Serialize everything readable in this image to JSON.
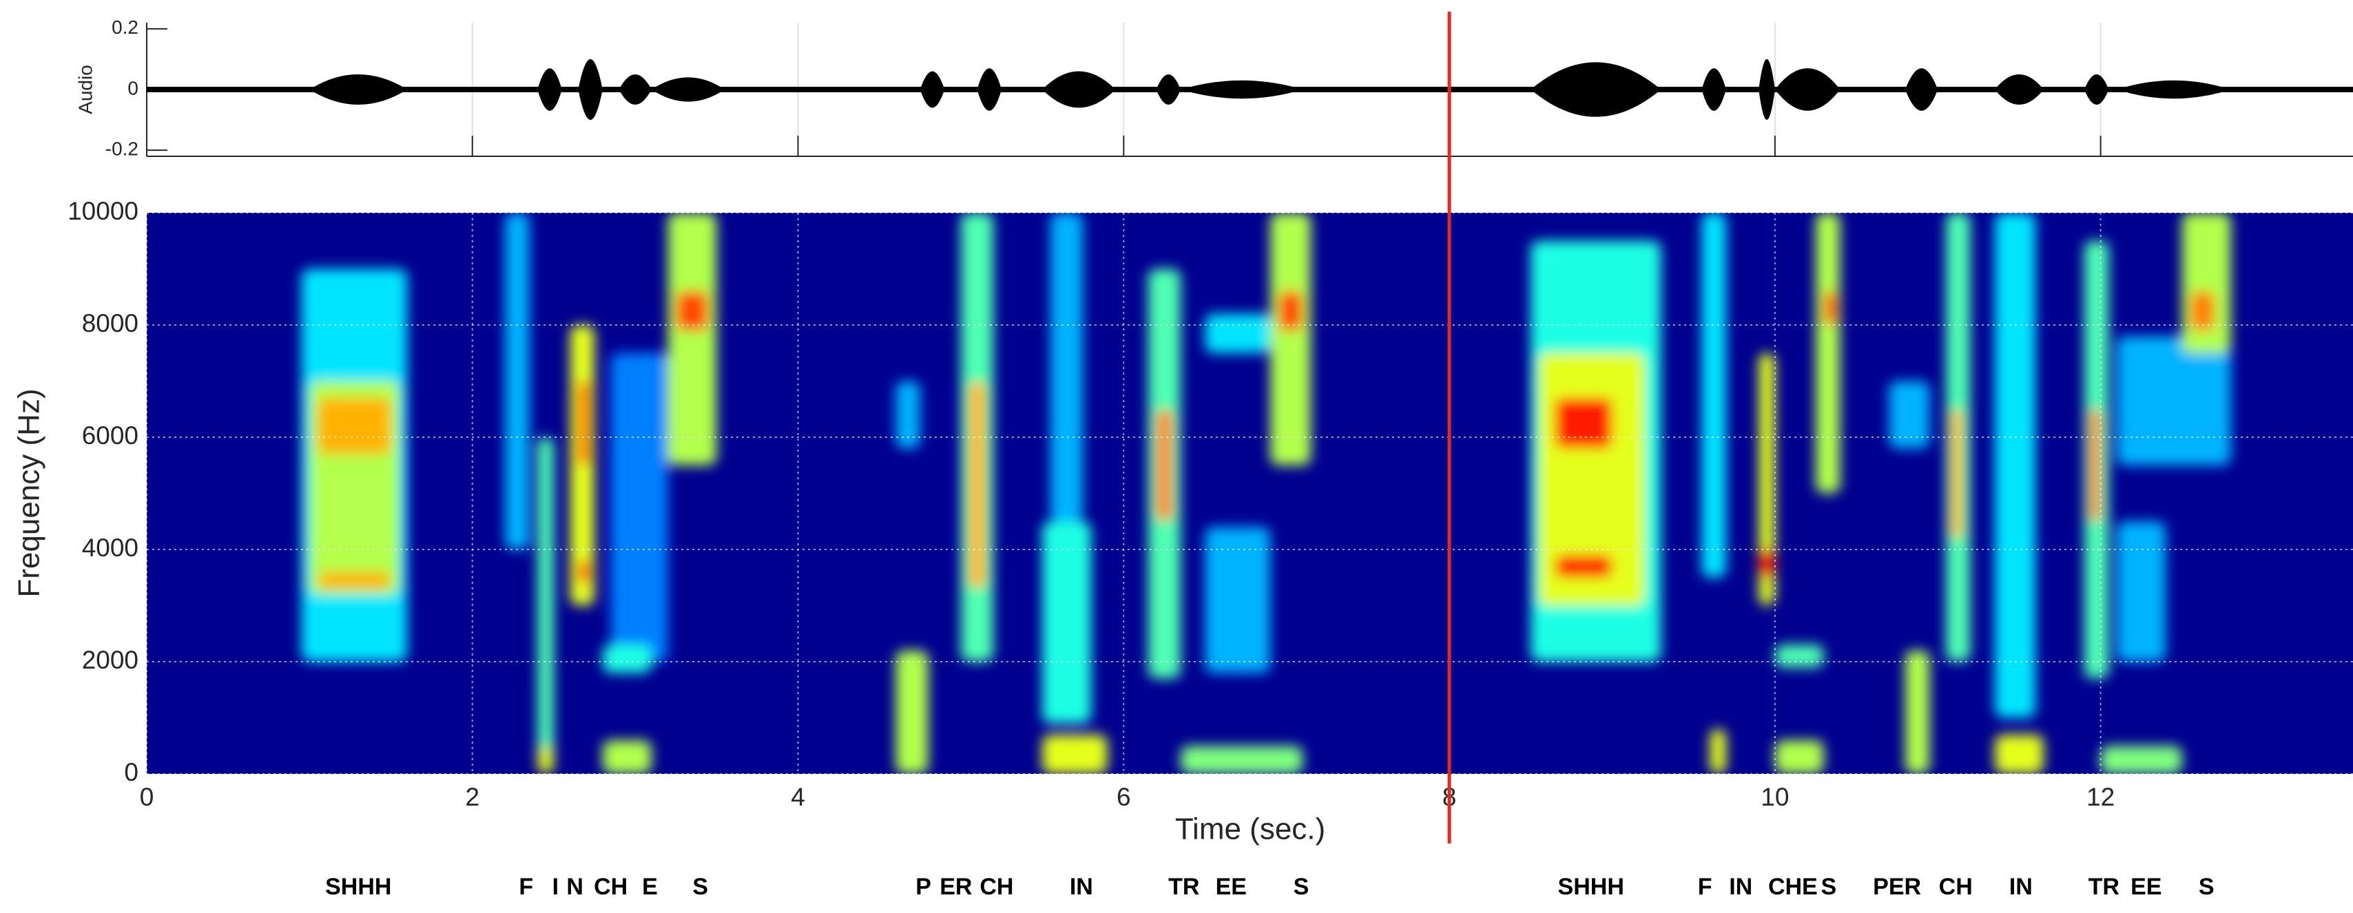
{
  "chart_data": [
    {
      "type": "waveform",
      "ylabel": "Audio",
      "xlim": [
        0,
        13.55
      ],
      "xticks": [
        0,
        2,
        4,
        6,
        8,
        10,
        12
      ],
      "ylim": [
        -0.22,
        0.22
      ],
      "yticks": [
        0.2,
        0,
        -0.2
      ],
      "color": "#000000",
      "grid": true,
      "segments": [
        {
          "t0": 1.0,
          "t1": 1.6,
          "amp": 0.05
        },
        {
          "t0": 2.4,
          "t1": 2.55,
          "amp": 0.07
        },
        {
          "t0": 2.65,
          "t1": 2.8,
          "amp": 0.1
        },
        {
          "t0": 2.9,
          "t1": 3.1,
          "amp": 0.05
        },
        {
          "t0": 3.1,
          "t1": 3.55,
          "amp": 0.04
        },
        {
          "t0": 4.75,
          "t1": 4.9,
          "amp": 0.06
        },
        {
          "t0": 5.1,
          "t1": 5.25,
          "amp": 0.07
        },
        {
          "t0": 5.5,
          "t1": 5.95,
          "amp": 0.06
        },
        {
          "t0": 6.2,
          "t1": 6.35,
          "amp": 0.05
        },
        {
          "t0": 6.35,
          "t1": 7.1,
          "amp": 0.03
        },
        {
          "t0": 8.5,
          "t1": 9.3,
          "amp": 0.09
        },
        {
          "t0": 9.55,
          "t1": 9.7,
          "amp": 0.07
        },
        {
          "t0": 9.9,
          "t1": 10.0,
          "amp": 0.1
        },
        {
          "t0": 10.0,
          "t1": 10.4,
          "amp": 0.07
        },
        {
          "t0": 10.8,
          "t1": 11.0,
          "amp": 0.07
        },
        {
          "t0": 11.35,
          "t1": 11.65,
          "amp": 0.05
        },
        {
          "t0": 11.9,
          "t1": 12.05,
          "amp": 0.05
        },
        {
          "t0": 12.1,
          "t1": 12.8,
          "amp": 0.03
        }
      ]
    },
    {
      "type": "spectrogram",
      "xlabel": "Time (sec.)",
      "ylabel": "Frequency (Hz)",
      "xlim": [
        0,
        13.55
      ],
      "xticks": [
        0,
        2,
        4,
        6,
        8,
        10,
        12
      ],
      "ylim": [
        0,
        10000
      ],
      "yticks": [
        0,
        2000,
        4000,
        6000,
        8000,
        10000
      ],
      "grid": true,
      "marker": {
        "x": 8,
        "color": "#e8281e"
      },
      "blobs": [
        {
          "t0": 0.95,
          "t1": 1.6,
          "f0": 2000,
          "f1": 9000,
          "i": 0.35
        },
        {
          "t0": 1.0,
          "t1": 1.55,
          "f0": 3200,
          "f1": 7000,
          "i": 0.55
        },
        {
          "t0": 1.05,
          "t1": 1.5,
          "f0": 5700,
          "f1": 6700,
          "i": 0.7
        },
        {
          "t0": 1.05,
          "t1": 1.5,
          "f0": 3300,
          "f1": 3600,
          "i": 0.7
        },
        {
          "t0": 2.2,
          "t1": 2.35,
          "f0": 4000,
          "f1": 10000,
          "i": 0.3
        },
        {
          "t0": 2.4,
          "t1": 2.5,
          "f0": 200,
          "f1": 6000,
          "i": 0.45
        },
        {
          "t0": 2.4,
          "t1": 2.5,
          "f0": 0,
          "f1": 500,
          "i": 0.6
        },
        {
          "t0": 2.6,
          "t1": 2.75,
          "f0": 3000,
          "f1": 8000,
          "i": 0.6
        },
        {
          "t0": 2.65,
          "t1": 2.72,
          "f0": 5500,
          "f1": 7000,
          "i": 0.8
        },
        {
          "t0": 2.65,
          "t1": 2.72,
          "f0": 3400,
          "f1": 3800,
          "i": 0.85
        },
        {
          "t0": 2.85,
          "t1": 3.2,
          "f0": 2000,
          "f1": 7500,
          "i": 0.25
        },
        {
          "t0": 2.8,
          "t1": 3.1,
          "f0": 0,
          "f1": 600,
          "i": 0.55
        },
        {
          "t0": 2.8,
          "t1": 3.1,
          "f0": 1800,
          "f1": 2300,
          "i": 0.4
        },
        {
          "t0": 3.2,
          "t1": 3.5,
          "f0": 5500,
          "f1": 10000,
          "i": 0.55
        },
        {
          "t0": 3.25,
          "t1": 3.45,
          "f0": 7900,
          "f1": 8600,
          "i": 0.8
        },
        {
          "t0": 4.6,
          "t1": 4.8,
          "f0": 0,
          "f1": 2200,
          "i": 0.55
        },
        {
          "t0": 4.6,
          "t1": 4.75,
          "f0": 5800,
          "f1": 7000,
          "i": 0.3
        },
        {
          "t0": 5.0,
          "t1": 5.2,
          "f0": 2000,
          "f1": 10000,
          "i": 0.45
        },
        {
          "t0": 5.05,
          "t1": 5.15,
          "f0": 3300,
          "f1": 7000,
          "i": 0.7
        },
        {
          "t0": 5.55,
          "t1": 5.75,
          "f0": 4500,
          "f1": 10000,
          "i": 0.3
        },
        {
          "t0": 5.5,
          "t1": 5.8,
          "f0": 900,
          "f1": 4500,
          "i": 0.4
        },
        {
          "t0": 5.5,
          "t1": 5.9,
          "f0": 0,
          "f1": 700,
          "i": 0.6
        },
        {
          "t0": 6.15,
          "t1": 6.35,
          "f0": 1700,
          "f1": 9000,
          "i": 0.45
        },
        {
          "t0": 6.2,
          "t1": 6.3,
          "f0": 4500,
          "f1": 6500,
          "i": 0.75
        },
        {
          "t0": 6.5,
          "t1": 6.9,
          "f0": 1800,
          "f1": 4400,
          "i": 0.3
        },
        {
          "t0": 6.35,
          "t1": 7.1,
          "f0": 0,
          "f1": 500,
          "i": 0.5
        },
        {
          "t0": 6.5,
          "t1": 6.9,
          "f0": 7500,
          "f1": 8200,
          "i": 0.35
        },
        {
          "t0": 6.9,
          "t1": 7.15,
          "f0": 5500,
          "f1": 10000,
          "i": 0.55
        },
        {
          "t0": 6.95,
          "t1": 7.1,
          "f0": 7900,
          "f1": 8600,
          "i": 0.8
        },
        {
          "t0": 8.5,
          "t1": 9.3,
          "f0": 2000,
          "f1": 9500,
          "i": 0.4
        },
        {
          "t0": 8.55,
          "t1": 9.2,
          "f0": 3000,
          "f1": 7500,
          "i": 0.6
        },
        {
          "t0": 8.65,
          "t1": 9.0,
          "f0": 5800,
          "f1": 6700,
          "i": 0.85
        },
        {
          "t0": 8.65,
          "t1": 9.0,
          "f0": 3500,
          "f1": 3900,
          "i": 0.85
        },
        {
          "t0": 9.55,
          "t1": 9.7,
          "f0": 3500,
          "f1": 10000,
          "i": 0.35
        },
        {
          "t0": 9.6,
          "t1": 9.7,
          "f0": 0,
          "f1": 800,
          "i": 0.6
        },
        {
          "t0": 9.9,
          "t1": 10.0,
          "f0": 3000,
          "f1": 7500,
          "i": 0.6
        },
        {
          "t0": 9.9,
          "t1": 10.0,
          "f0": 3500,
          "f1": 4000,
          "i": 0.85
        },
        {
          "t0": 10.0,
          "t1": 10.3,
          "f0": 0,
          "f1": 600,
          "i": 0.55
        },
        {
          "t0": 10.0,
          "t1": 10.3,
          "f0": 1900,
          "f1": 2300,
          "i": 0.45
        },
        {
          "t0": 10.25,
          "t1": 10.4,
          "f0": 5000,
          "f1": 10000,
          "i": 0.55
        },
        {
          "t0": 10.3,
          "t1": 10.38,
          "f0": 8000,
          "f1": 8600,
          "i": 0.8
        },
        {
          "t0": 10.8,
          "t1": 10.95,
          "f0": 0,
          "f1": 2200,
          "i": 0.55
        },
        {
          "t0": 10.7,
          "t1": 10.95,
          "f0": 5800,
          "f1": 7000,
          "i": 0.3
        },
        {
          "t0": 11.05,
          "t1": 11.2,
          "f0": 2000,
          "f1": 10000,
          "i": 0.45
        },
        {
          "t0": 11.08,
          "t1": 11.15,
          "f0": 4200,
          "f1": 6500,
          "i": 0.7
        },
        {
          "t0": 11.35,
          "t1": 11.6,
          "f0": 1000,
          "f1": 10000,
          "i": 0.35
        },
        {
          "t0": 11.35,
          "t1": 11.65,
          "f0": 0,
          "f1": 700,
          "i": 0.6
        },
        {
          "t0": 11.9,
          "t1": 12.05,
          "f0": 1700,
          "f1": 9500,
          "i": 0.45
        },
        {
          "t0": 11.93,
          "t1": 12.0,
          "f0": 4500,
          "f1": 6500,
          "i": 0.75
        },
        {
          "t0": 12.1,
          "t1": 12.4,
          "f0": 2000,
          "f1": 4500,
          "i": 0.3
        },
        {
          "t0": 12.0,
          "t1": 12.5,
          "f0": 0,
          "f1": 500,
          "i": 0.5
        },
        {
          "t0": 12.1,
          "t1": 12.8,
          "f0": 5500,
          "f1": 7800,
          "i": 0.3
        },
        {
          "t0": 12.5,
          "t1": 12.8,
          "f0": 7500,
          "f1": 10000,
          "i": 0.55
        },
        {
          "t0": 12.55,
          "t1": 12.7,
          "f0": 7900,
          "f1": 8600,
          "i": 0.75
        }
      ],
      "phonemes": [
        {
          "label": "SHHH",
          "time": 1.3
        },
        {
          "label": "F",
          "time": 2.33
        },
        {
          "label": "I",
          "time": 2.51
        },
        {
          "label": "N",
          "time": 2.63
        },
        {
          "label": "CH",
          "time": 2.85
        },
        {
          "label": "E",
          "time": 3.09
        },
        {
          "label": "S",
          "time": 3.4
        },
        {
          "label": "P",
          "time": 4.77
        },
        {
          "label": "ER",
          "time": 4.97
        },
        {
          "label": "CH",
          "time": 5.22
        },
        {
          "label": "IN",
          "time": 5.74
        },
        {
          "label": "TR",
          "time": 6.37
        },
        {
          "label": "EE",
          "time": 6.66
        },
        {
          "label": "S",
          "time": 7.09
        },
        {
          "label": "SHHH",
          "time": 8.87
        },
        {
          "label": "F",
          "time": 9.57
        },
        {
          "label": "IN",
          "time": 9.79
        },
        {
          "label": "CHE",
          "time": 10.11
        },
        {
          "label": "S",
          "time": 10.33
        },
        {
          "label": "PER",
          "time": 10.75
        },
        {
          "label": "CH",
          "time": 11.11
        },
        {
          "label": "IN",
          "time": 11.51
        },
        {
          "label": "TR",
          "time": 12.02
        },
        {
          "label": "EE",
          "time": 12.28
        },
        {
          "label": "S",
          "time": 12.65
        }
      ]
    }
  ]
}
